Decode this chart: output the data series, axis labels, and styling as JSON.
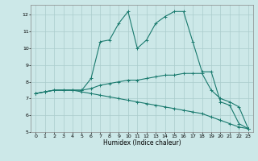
{
  "title": "",
  "xlabel": "Humidex (Indice chaleur)",
  "ylabel": "",
  "xlim": [
    -0.5,
    23.5
  ],
  "ylim": [
    5,
    12.6
  ],
  "yticks": [
    5,
    6,
    7,
    8,
    9,
    10,
    11,
    12
  ],
  "xticks": [
    0,
    1,
    2,
    3,
    4,
    5,
    6,
    7,
    8,
    9,
    10,
    11,
    12,
    13,
    14,
    15,
    16,
    17,
    18,
    19,
    20,
    21,
    22,
    23
  ],
  "bg_color": "#cce8e8",
  "line_color": "#1a7a6e",
  "grid_color": "#aacccc",
  "line1_x": [
    0,
    1,
    2,
    3,
    4,
    5,
    6,
    7,
    8,
    9,
    10,
    11,
    12,
    13,
    14,
    15,
    16,
    17,
    18,
    19,
    20,
    21,
    22,
    23
  ],
  "line1_y": [
    7.3,
    7.4,
    7.5,
    7.5,
    7.5,
    7.5,
    8.2,
    10.4,
    10.5,
    11.5,
    12.2,
    10.0,
    10.5,
    11.5,
    11.9,
    12.2,
    12.2,
    10.4,
    8.6,
    8.6,
    6.8,
    6.6,
    5.5,
    5.2
  ],
  "line2_x": [
    0,
    1,
    2,
    3,
    4,
    5,
    6,
    7,
    8,
    9,
    10,
    11,
    12,
    13,
    14,
    15,
    16,
    17,
    18,
    19,
    20,
    21,
    22,
    23
  ],
  "line2_y": [
    7.3,
    7.4,
    7.5,
    7.5,
    7.5,
    7.5,
    7.6,
    7.8,
    7.9,
    8.0,
    8.1,
    8.1,
    8.2,
    8.3,
    8.4,
    8.4,
    8.5,
    8.5,
    8.5,
    7.5,
    7.0,
    6.8,
    6.5,
    5.2
  ],
  "line3_x": [
    0,
    1,
    2,
    3,
    4,
    5,
    6,
    7,
    8,
    9,
    10,
    11,
    12,
    13,
    14,
    15,
    16,
    17,
    18,
    19,
    20,
    21,
    22,
    23
  ],
  "line3_y": [
    7.3,
    7.4,
    7.5,
    7.5,
    7.5,
    7.4,
    7.3,
    7.2,
    7.1,
    7.0,
    6.9,
    6.8,
    6.7,
    6.6,
    6.5,
    6.4,
    6.3,
    6.2,
    6.1,
    5.9,
    5.7,
    5.5,
    5.3,
    5.2
  ]
}
